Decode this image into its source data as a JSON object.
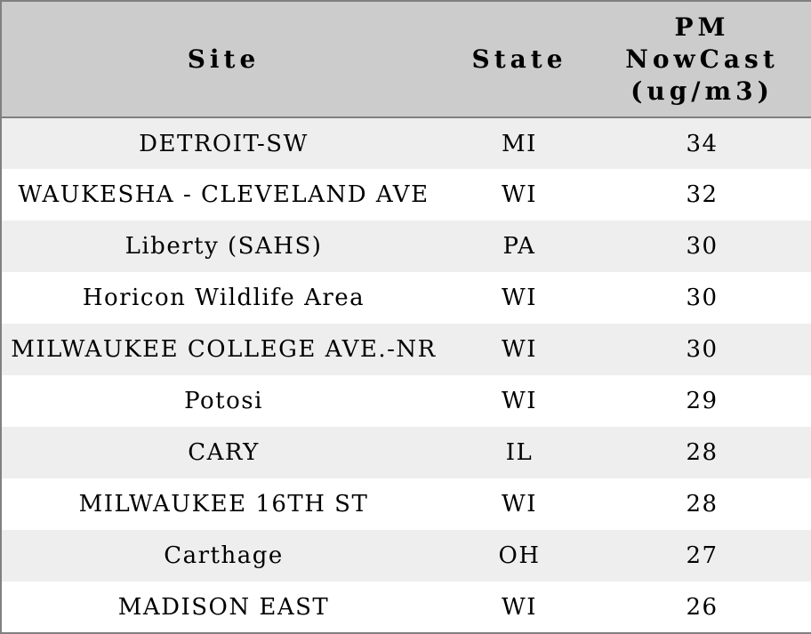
{
  "table": {
    "columns": [
      {
        "key": "site",
        "label": "Site"
      },
      {
        "key": "state",
        "label": "State"
      },
      {
        "key": "pm_nowcast",
        "label": "PM\nNowCast\n(ug/m3)"
      }
    ],
    "rows": [
      {
        "site": "DETROIT-SW",
        "state": "MI",
        "pm_nowcast": "34"
      },
      {
        "site": "WAUKESHA - CLEVELAND AVE",
        "state": "WI",
        "pm_nowcast": "32"
      },
      {
        "site": "Liberty (SAHS)",
        "state": "PA",
        "pm_nowcast": "30"
      },
      {
        "site": "Horicon Wildlife Area",
        "state": "WI",
        "pm_nowcast": "30"
      },
      {
        "site": "MILWAUKEE COLLEGE AVE.-NR",
        "state": "WI",
        "pm_nowcast": "30"
      },
      {
        "site": "Potosi",
        "state": "WI",
        "pm_nowcast": "29"
      },
      {
        "site": "CARY",
        "state": "IL",
        "pm_nowcast": "28"
      },
      {
        "site": "MILWAUKEE 16TH ST",
        "state": "WI",
        "pm_nowcast": "28"
      },
      {
        "site": "Carthage",
        "state": "OH",
        "pm_nowcast": "27"
      },
      {
        "site": "MADISON EAST",
        "state": "WI",
        "pm_nowcast": "26"
      }
    ],
    "colors": {
      "header_bg": "#cccccc",
      "row_stripe": "#eeeeee",
      "row_plain": "#ffffff",
      "border": "#808080",
      "text": "#000000"
    }
  }
}
